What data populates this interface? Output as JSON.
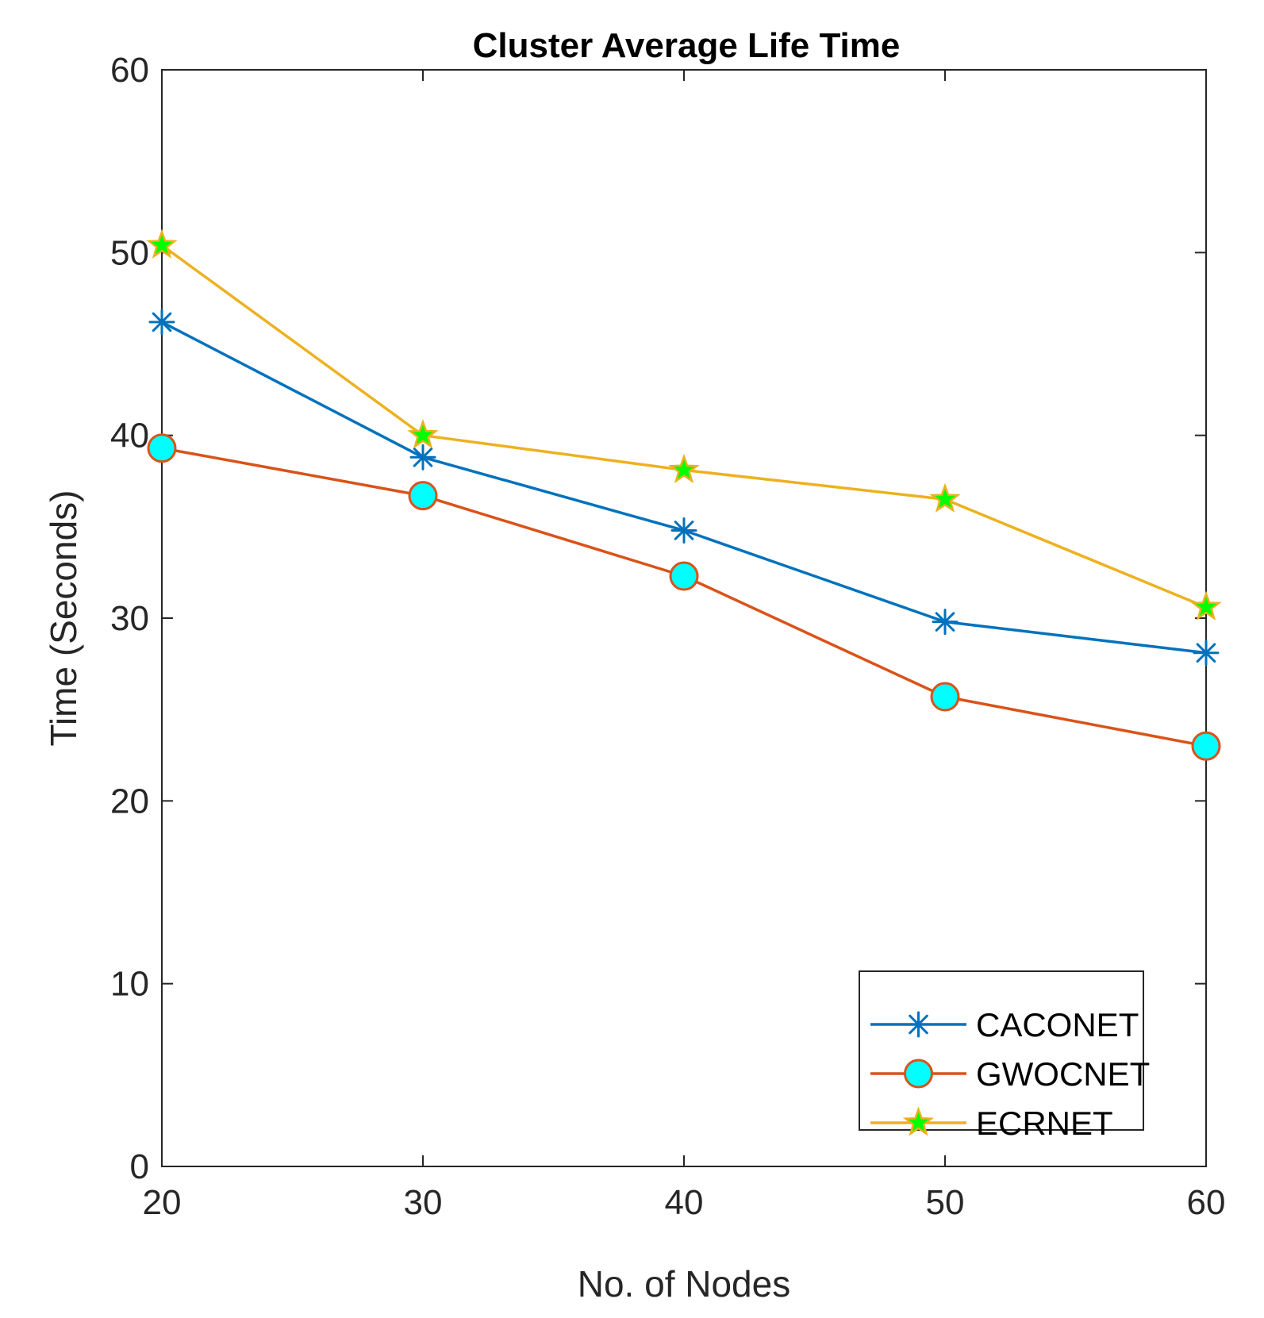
{
  "chart_data": {
    "type": "line",
    "title": "Cluster Average Life Time",
    "xlabel": "No. of Nodes",
    "ylabel": "Time (Seconds)",
    "x": [
      20,
      30,
      40,
      50,
      60
    ],
    "xlim": [
      20,
      60
    ],
    "ylim": [
      0,
      60
    ],
    "xticks": [
      20,
      30,
      40,
      50,
      60
    ],
    "yticks": [
      0,
      10,
      20,
      30,
      40,
      50,
      60
    ],
    "grid": false,
    "legend_position": "bottom-right",
    "series": [
      {
        "name": "CACONET",
        "values": [
          46.2,
          38.8,
          34.8,
          29.8,
          28.1
        ],
        "line_color": "#0072BD",
        "marker": "asterisk",
        "marker_face": "none",
        "marker_edge": "#0072BD"
      },
      {
        "name": "GWOCNET",
        "values": [
          39.3,
          36.7,
          32.3,
          25.7,
          23.0
        ],
        "line_color": "#D95319",
        "marker": "circle",
        "marker_face": "#00FFFF",
        "marker_edge": "#D95319"
      },
      {
        "name": "ECRNET",
        "values": [
          50.4,
          40.0,
          38.1,
          36.5,
          30.6
        ],
        "line_color": "#EDB120",
        "marker": "pentagram",
        "marker_face": "#00FF00",
        "marker_edge": "#EDB120"
      }
    ]
  }
}
